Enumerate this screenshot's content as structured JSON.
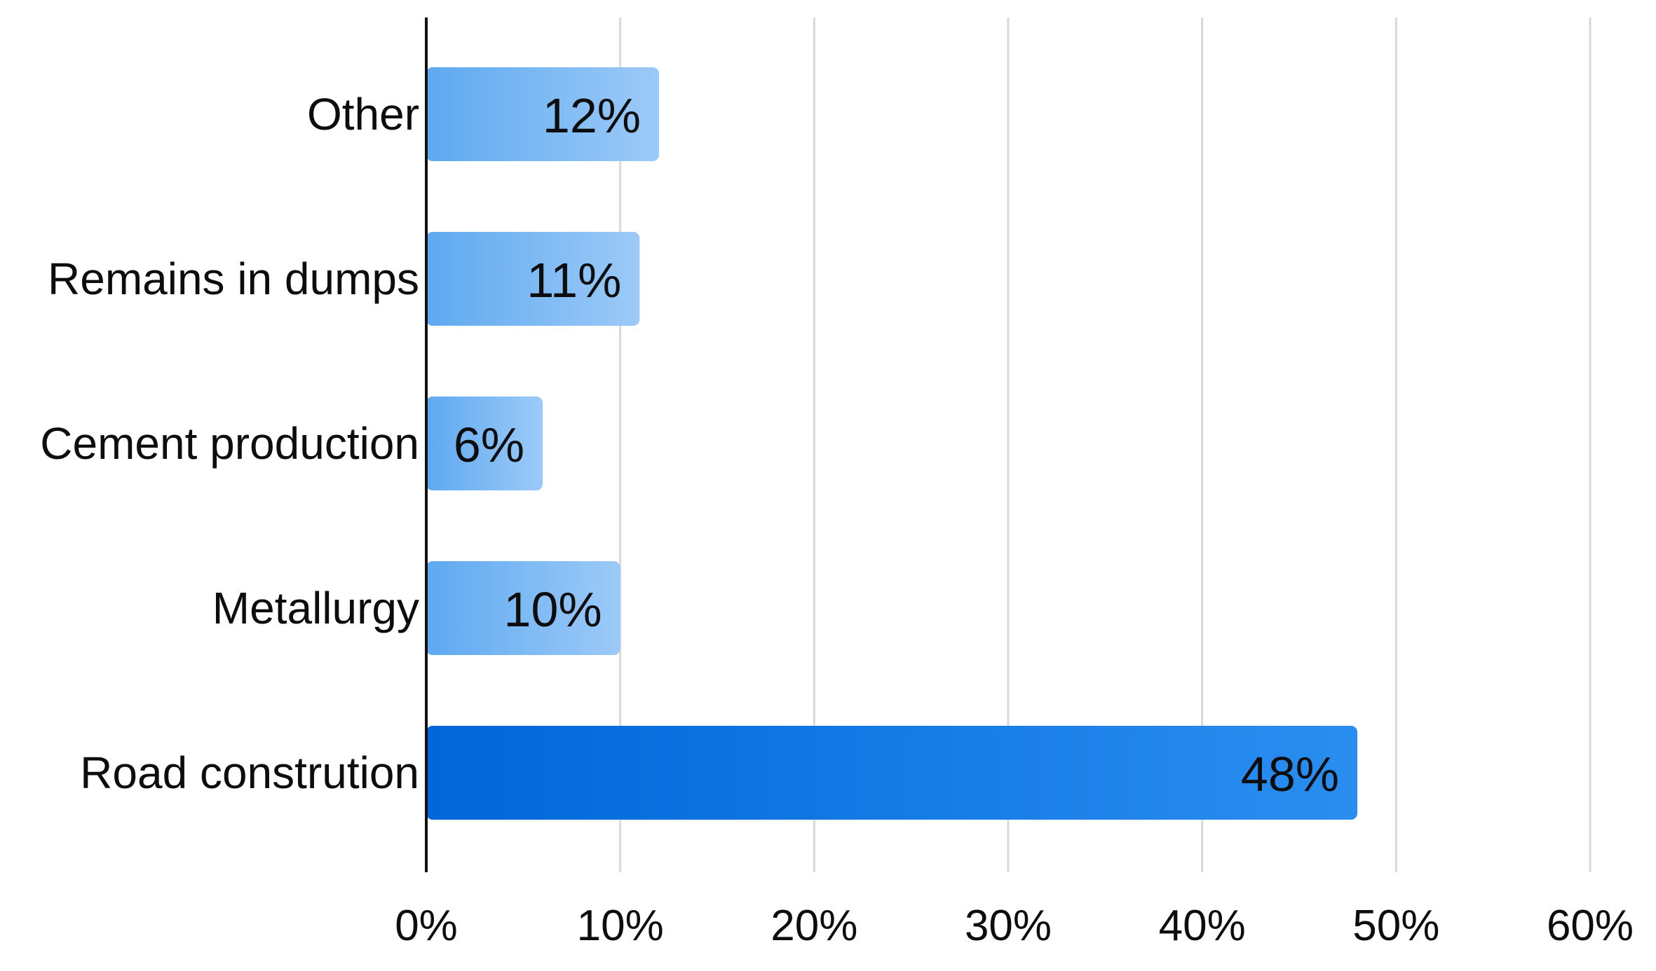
{
  "chart_data": {
    "type": "bar",
    "orientation": "horizontal",
    "categories": [
      "Other",
      "Remains in dumps",
      "Cement production",
      "Metallurgy",
      "Road constrution"
    ],
    "values": [
      12,
      11,
      6,
      10,
      48
    ],
    "data_labels": [
      "12%",
      "11%",
      "6%",
      "10%",
      "48%"
    ],
    "xticks": [
      0,
      10,
      20,
      30,
      40,
      50,
      60
    ],
    "xtick_labels": [
      "0%",
      "10%",
      "20%",
      "30%",
      "40%",
      "50%",
      "60%"
    ],
    "xlim": [
      0,
      60
    ],
    "grid": "vertical",
    "title": "",
    "xlabel": "",
    "ylabel": "",
    "colors": {
      "bar_light_start": "#5ea9f0",
      "bar_light_end": "#9ccaf8",
      "bar_highlight_start": "#0066d9",
      "bar_highlight_end": "#2a8ef0",
      "highlight_index": 4
    }
  }
}
